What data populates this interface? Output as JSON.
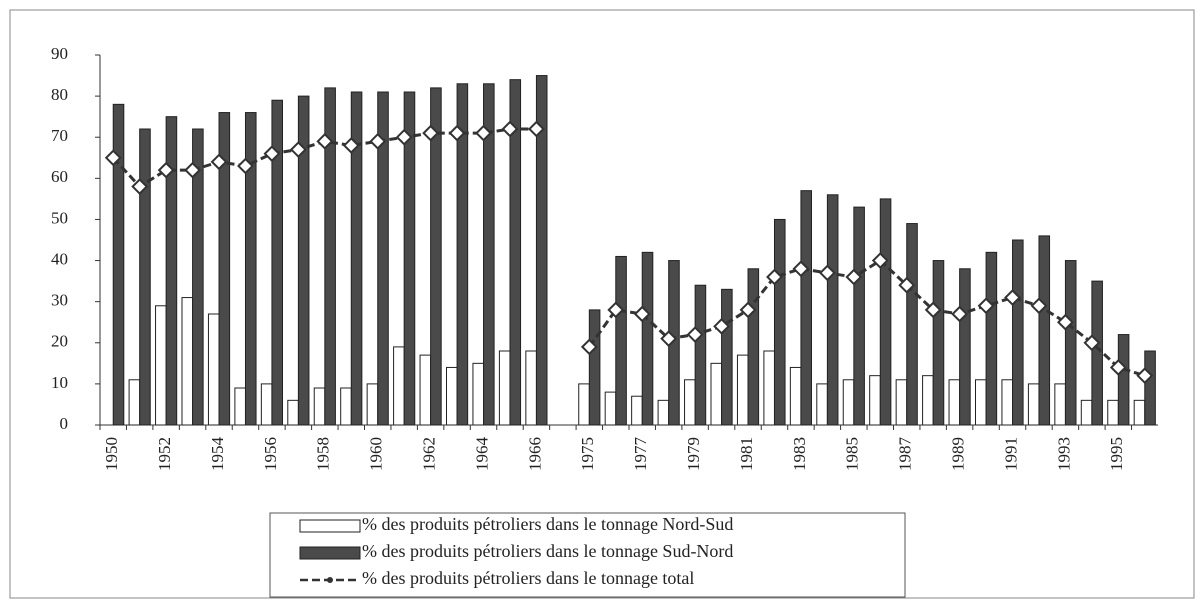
{
  "chart_data": {
    "type": "bar",
    "categories": [
      "1950",
      null,
      "1952",
      null,
      "1954",
      null,
      "1956",
      null,
      "1958",
      null,
      "1960",
      null,
      "1962",
      null,
      "1964",
      null,
      "1966",
      null,
      "1975",
      null,
      "1977",
      null,
      "1979",
      null,
      "1981",
      null,
      "1983",
      null,
      "1985",
      null,
      "1987",
      null,
      "1989",
      null,
      "1991",
      null,
      "1993",
      null,
      "1995",
      null
    ],
    "series": [
      {
        "name": "% des produits pétroliers dans le tonnage Nord-Sud",
        "type": "bar",
        "color": "#ffffff",
        "values": [
          null,
          11,
          29,
          31,
          27,
          9,
          10,
          6,
          9,
          9,
          10,
          19,
          17,
          14,
          15,
          18,
          18,
          null,
          10,
          8,
          7,
          6,
          11,
          15,
          17,
          18,
          14,
          10,
          11,
          12,
          11,
          12,
          11,
          11,
          11,
          10,
          10,
          6,
          6,
          6
        ]
      },
      {
        "name": "% des produits pétroliers dans le tonnage Sud-Nord",
        "type": "bar",
        "color": "#4a4a4a",
        "values": [
          78,
          72,
          75,
          72,
          76,
          76,
          79,
          80,
          82,
          81,
          81,
          81,
          82,
          83,
          83,
          84,
          85,
          null,
          28,
          41,
          42,
          40,
          34,
          33,
          38,
          50,
          57,
          56,
          53,
          55,
          49,
          40,
          38,
          42,
          45,
          46,
          40,
          35,
          22,
          18
        ]
      },
      {
        "name": "% des produits pétroliers dans le tonnage total",
        "type": "line",
        "color": "#333333",
        "values": [
          65,
          58,
          62,
          62,
          64,
          63,
          66,
          67,
          69,
          68,
          69,
          70,
          71,
          71,
          71,
          72,
          72,
          null,
          19,
          28,
          27,
          21,
          22,
          24,
          28,
          36,
          38,
          37,
          36,
          40,
          34,
          28,
          27,
          29,
          31,
          29,
          25,
          20,
          14,
          12
        ]
      }
    ],
    "ylim": [
      0,
      90
    ],
    "yticks": [
      0,
      10,
      20,
      30,
      40,
      50,
      60,
      70,
      80,
      90
    ],
    "legend": "bottom"
  }
}
